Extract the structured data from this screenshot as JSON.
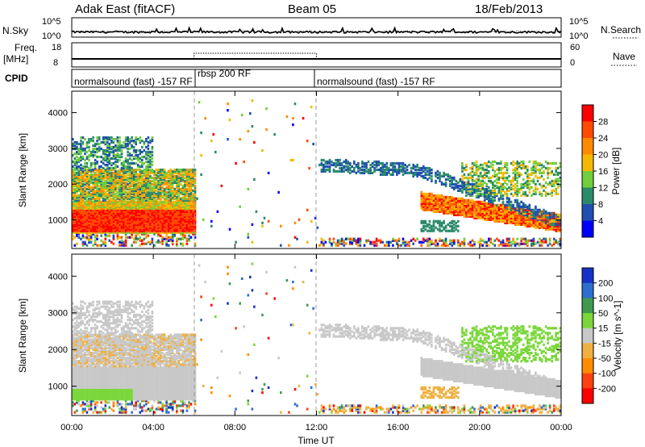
{
  "header": {
    "station": "Adak East (fitACF)",
    "beam": "Beam 05",
    "date": "18/Feb/2013"
  },
  "chart_data": [
    {
      "type": "line",
      "name": "sky-noise-strip",
      "left_label": "N.Sky",
      "right_label": "N.Search",
      "left_ticks": [
        "10^5",
        "10^0"
      ],
      "right_ticks": [
        "10^5",
        "10^0"
      ]
    },
    {
      "type": "line",
      "name": "frequency-strip",
      "left_label_top": "Freq.",
      "left_label_bottom": "[MHz]",
      "right_label": "Nave",
      "left_ticks": [
        "18",
        "8"
      ],
      "right_ticks": [
        "60",
        "0"
      ],
      "freq_level": 10,
      "nave_level_mid": 32,
      "nave_segment_x": [
        6,
        12
      ]
    },
    {
      "type": "table",
      "name": "cpid-strip",
      "label": "CPID",
      "segments": [
        {
          "label": "normalsound (fast) -157 RF",
          "x": [
            0,
            6
          ]
        },
        {
          "label": "rbsp 200 RF",
          "x": [
            6,
            12
          ]
        },
        {
          "label": "normalsound (fast) -157 RF",
          "x": [
            12,
            24
          ]
        }
      ]
    },
    {
      "type": "heatmap",
      "name": "power-panel",
      "ylabel": "Slant Range [km]",
      "yticks": [
        1000,
        2000,
        3000,
        4000
      ],
      "ylim": [
        200,
        4600
      ],
      "xlim": [
        0,
        24
      ],
      "colorbar_label": "Power [dB]",
      "colorbar_ticks": [
        "4",
        "8",
        "12",
        "16",
        "20",
        "24",
        "28"
      ],
      "colorbar_colors": [
        "#0000ff",
        "#1f4fb0",
        "#2a8a6a",
        "#6fcf3c",
        "#f5b800",
        "#ff8a00",
        "#ff4a00",
        "#ff0000"
      ]
    },
    {
      "type": "heatmap",
      "name": "velocity-panel",
      "ylabel": "Slant Range [km]",
      "yticks": [
        1000,
        2000,
        3000,
        4000
      ],
      "ylim": [
        200,
        4600
      ],
      "xlim": [
        0,
        24
      ],
      "xlabel": "Time UT",
      "xticks": [
        "00:00",
        "04:00",
        "08:00",
        "12:00",
        "16:00",
        "20:00",
        "00:00"
      ],
      "colorbar_label": "Velocity [m s^-1]",
      "colorbar_ticks": [
        "200",
        "100",
        "50",
        "15",
        "-15",
        "-50",
        "-100",
        "-200"
      ],
      "colorbar_colors": [
        "#1432c8",
        "#2e6ecf",
        "#3f9a4f",
        "#7ad63a",
        "#c8c8c8",
        "#f0b040",
        "#ff8c00",
        "#ff4010",
        "#ff0000"
      ]
    }
  ]
}
